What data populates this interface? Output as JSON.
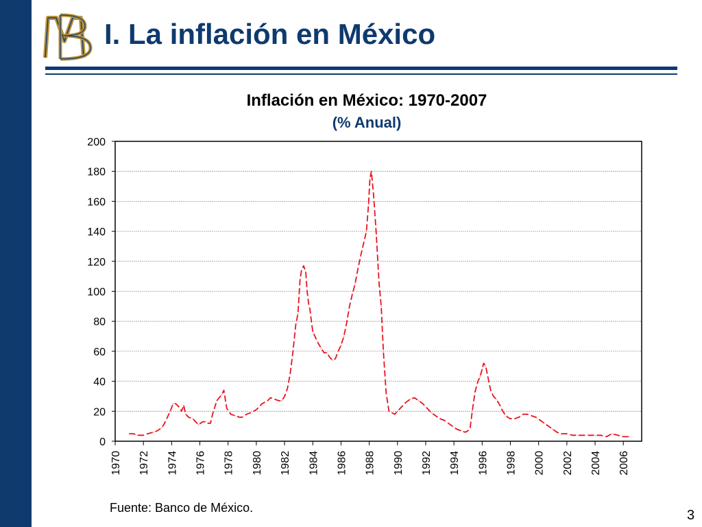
{
  "slide": {
    "title": "I. La inflación en México",
    "source": "Fuente: Banco de México.",
    "page_number": "3",
    "logo_text": "BM"
  },
  "colors": {
    "brand": "#0e3a6e",
    "logo_gold": "#b8913a",
    "series": "#e8121e",
    "grid": "#9a9a9a"
  },
  "chart_data": {
    "type": "line",
    "title": "Inflación en México: 1970-2007",
    "subtitle": "(% Anual)",
    "xlabel": "",
    "ylabel": "",
    "xlim": [
      1970,
      2007.3
    ],
    "ylim": [
      0,
      200
    ],
    "yticks": [
      0,
      20,
      40,
      60,
      80,
      100,
      120,
      140,
      160,
      180,
      200
    ],
    "xticks": [
      1970,
      1972,
      1974,
      1976,
      1978,
      1980,
      1982,
      1984,
      1986,
      1988,
      1990,
      1992,
      1994,
      1996,
      1998,
      2000,
      2002,
      2004,
      2006
    ],
    "grid": true,
    "legend": "none",
    "series": [
      {
        "name": "",
        "style": "dashed",
        "x": [
          1971.0,
          1971.3,
          1971.6,
          1972.0,
          1972.3,
          1972.7,
          1973.0,
          1973.3,
          1973.5,
          1973.7,
          1973.9,
          1974.1,
          1974.3,
          1974.5,
          1974.7,
          1974.85,
          1975.0,
          1975.2,
          1975.5,
          1975.7,
          1975.9,
          1976.2,
          1976.4,
          1976.6,
          1976.75,
          1976.9,
          1977.2,
          1977.45,
          1977.55,
          1977.7,
          1977.9,
          1978.2,
          1978.5,
          1978.8,
          1979.0,
          1979.3,
          1979.6,
          1980.0,
          1980.4,
          1980.8,
          1981.0,
          1981.3,
          1981.6,
          1981.8,
          1982.0,
          1982.2,
          1982.4,
          1982.6,
          1982.8,
          1982.95,
          1983.1,
          1983.2,
          1983.35,
          1983.5,
          1983.6,
          1983.7,
          1983.8,
          1983.9,
          1984.0,
          1984.2,
          1984.4,
          1984.6,
          1984.8,
          1985.0,
          1985.2,
          1985.4,
          1985.6,
          1985.8,
          1986.0,
          1986.2,
          1986.4,
          1986.6,
          1986.8,
          1987.0,
          1987.2,
          1987.4,
          1987.6,
          1987.8,
          1987.95,
          1988.05,
          1988.15,
          1988.3,
          1988.5,
          1988.7,
          1988.85,
          1989.0,
          1989.2,
          1989.4,
          1989.6,
          1989.8,
          1990.0,
          1990.3,
          1990.6,
          1990.9,
          1991.2,
          1991.5,
          1991.8,
          1992.1,
          1992.4,
          1992.7,
          1993.0,
          1993.3,
          1993.6,
          1993.9,
          1994.2,
          1994.5,
          1994.8,
          1995.0,
          1995.15,
          1995.3,
          1995.5,
          1995.7,
          1995.85,
          1996.0,
          1996.1,
          1996.25,
          1996.4,
          1996.6,
          1996.8,
          1997.0,
          1997.2,
          1997.4,
          1997.6,
          1997.8,
          1998.0,
          1998.3,
          1998.6,
          1998.9,
          1999.2,
          1999.5,
          1999.8,
          2000.1,
          2000.4,
          2000.7,
          2001.0,
          2001.3,
          2001.6,
          2002.0,
          2002.4,
          2002.8,
          2003.2,
          2003.6,
          2004.0,
          2004.4,
          2004.8,
          2005.2,
          2005.6,
          2006.0,
          2006.4
        ],
        "y": [
          5,
          5,
          4,
          4,
          5,
          6,
          7,
          9,
          12,
          16,
          20,
          25,
          25,
          23,
          20,
          24,
          18,
          16,
          15,
          13,
          11,
          13,
          13,
          12,
          12,
          18,
          27,
          30,
          31,
          34,
          22,
          18,
          17,
          16,
          16,
          18,
          19,
          21,
          25,
          27,
          29,
          28,
          27,
          27,
          30,
          35,
          45,
          60,
          78,
          85,
          108,
          114,
          117,
          113,
          100,
          92,
          88,
          80,
          73,
          69,
          65,
          62,
          59,
          59,
          56,
          54,
          55,
          60,
          64,
          70,
          79,
          90,
          98,
          105,
          115,
          124,
          132,
          140,
          158,
          175,
          180,
          165,
          138,
          105,
          90,
          60,
          32,
          20,
          19,
          18,
          20,
          23,
          26,
          28,
          29,
          27,
          25,
          22,
          19,
          17,
          15,
          14,
          12,
          10,
          8,
          7,
          6,
          7,
          9,
          20,
          33,
          40,
          43,
          48,
          52,
          50,
          43,
          34,
          30,
          28,
          25,
          21,
          18,
          16,
          15,
          15,
          16,
          18,
          18,
          17,
          16,
          14,
          12,
          10,
          8,
          6,
          5,
          5,
          4,
          4,
          4,
          4,
          4,
          4,
          3,
          5,
          4,
          3,
          3
        ]
      }
    ]
  }
}
